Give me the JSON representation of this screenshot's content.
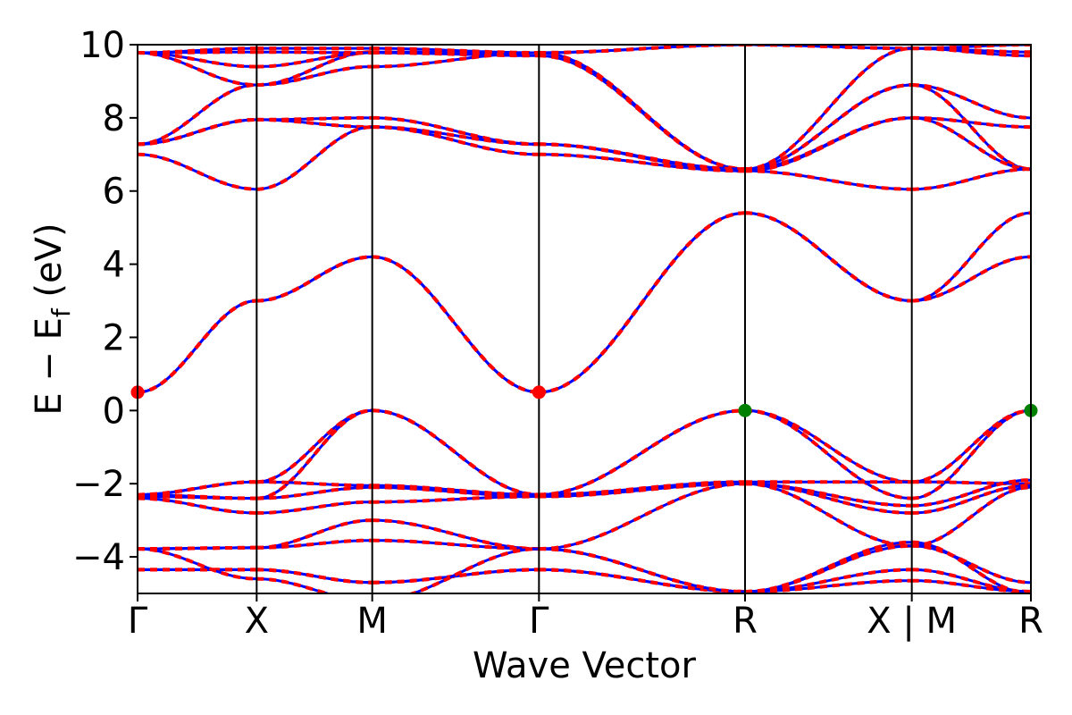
{
  "chart_data": {
    "type": "line",
    "xlabel": "Wave Vector",
    "ylabel": {
      "main": "E − E",
      "sub": "f",
      "unit": " (eV)"
    },
    "ylim": [
      -5,
      10
    ],
    "yticks": [
      {
        "value": -4,
        "label": "−4"
      },
      {
        "value": -2,
        "label": "−2"
      },
      {
        "value": 0,
        "label": "0"
      },
      {
        "value": 2,
        "label": "2"
      },
      {
        "value": 4,
        "label": "4"
      },
      {
        "value": 6,
        "label": "6"
      },
      {
        "value": 8,
        "label": "8"
      },
      {
        "value": 10,
        "label": "10"
      }
    ],
    "xlim": [
      0,
      7.5
    ],
    "kpoints": [
      {
        "label": "Γ",
        "x": 0
      },
      {
        "label": "X",
        "x": 1
      },
      {
        "label": "M",
        "x": 1.97
      },
      {
        "label": "Γ",
        "x": 3.37
      },
      {
        "label": "R",
        "x": 5.1
      },
      {
        "label": "X | M",
        "x": 6.5
      },
      {
        "label": "R",
        "x": 7.5
      }
    ],
    "segments": [
      {
        "x0": 0,
        "x1": 1
      },
      {
        "x0": 1,
        "x1": 1.97
      },
      {
        "x0": 1.97,
        "x1": 3.37
      },
      {
        "x0": 3.37,
        "x1": 5.1
      },
      {
        "x0": 5.1,
        "x1": 6.5
      },
      {
        "x0": 6.5,
        "x1": 7.5
      }
    ],
    "series_styles": [
      {
        "color": "#0000ff",
        "dash": "none",
        "width": 3
      },
      {
        "color": "#ff0000",
        "dash": "8,6",
        "width": 4
      }
    ],
    "bands": [
      [
        [
          9.78,
          9.9,
          9.9,
          9.78,
          10.0,
          9.9,
          9.8
        ],
        [
          9.78,
          9.8,
          9.78,
          9.78,
          10.0,
          9.9,
          10.0
        ]
      ],
      [
        [
          9.78,
          8.9,
          9.8,
          9.78,
          6.6,
          8.9,
          8.0
        ],
        [
          9.78,
          9.4,
          9.78,
          9.7,
          6.6,
          9.9,
          9.7
        ]
      ],
      [
        [
          7.28,
          8.9,
          9.4,
          9.78,
          6.6,
          8.9,
          6.6
        ],
        [
          7.28,
          7.95,
          8.0,
          7.28,
          6.6,
          8.0,
          6.6
        ]
      ],
      [
        [
          7.28,
          7.95,
          7.75,
          7.28,
          6.55,
          8.0,
          7.75
        ],
        [
          7.0,
          6.05,
          7.75,
          7.0,
          6.55,
          6.05,
          6.6
        ]
      ],
      [
        [
          0.5,
          3.0,
          4.2,
          0.5,
          5.4,
          3.0,
          4.2
        ],
        [
          0.5,
          3.0,
          4.2,
          0.5,
          5.4,
          3.0,
          5.4
        ]
      ],
      [
        [
          -2.3,
          -1.95,
          0.0,
          -2.3,
          0.0,
          -1.95,
          0.0
        ],
        [
          -2.3,
          -2.4,
          0.0,
          -2.3,
          0.0,
          -2.4,
          0.0
        ]
      ],
      [
        [
          -2.3,
          -1.95,
          -2.05,
          -2.3,
          -1.95,
          -1.95,
          -2.0
        ],
        [
          -2.35,
          -2.4,
          -2.1,
          -2.35,
          -2.0,
          -2.6,
          -1.9
        ]
      ],
      [
        [
          -2.4,
          -2.8,
          -2.5,
          -2.35,
          -2.0,
          -2.8,
          -2.05
        ],
        [
          -3.78,
          -3.75,
          -3.0,
          -3.78,
          -2.0,
          -3.7,
          -2.1
        ]
      ],
      [
        [
          -3.78,
          -3.75,
          -3.55,
          -3.78,
          -4.95,
          -3.7,
          -4.7
        ],
        [
          -4.35,
          -4.35,
          -4.7,
          -4.35,
          -4.95,
          -4.35,
          -4.95
        ]
      ],
      [
        [
          -4.35,
          -4.35,
          -4.7,
          -4.35,
          -4.95,
          -4.65,
          -4.95
        ],
        [
          -3.78,
          -4.6,
          -5.2,
          -3.78,
          -4.95,
          -3.6,
          -5.0
        ]
      ]
    ],
    "markers": [
      {
        "x": 0,
        "y": 0.5,
        "color": "#ff0000"
      },
      {
        "x": 3.37,
        "y": 0.5,
        "color": "#ff0000"
      },
      {
        "x": 5.1,
        "y": 0.0,
        "color": "#008000"
      },
      {
        "x": 7.5,
        "y": 0.0,
        "color": "#008000"
      }
    ]
  }
}
